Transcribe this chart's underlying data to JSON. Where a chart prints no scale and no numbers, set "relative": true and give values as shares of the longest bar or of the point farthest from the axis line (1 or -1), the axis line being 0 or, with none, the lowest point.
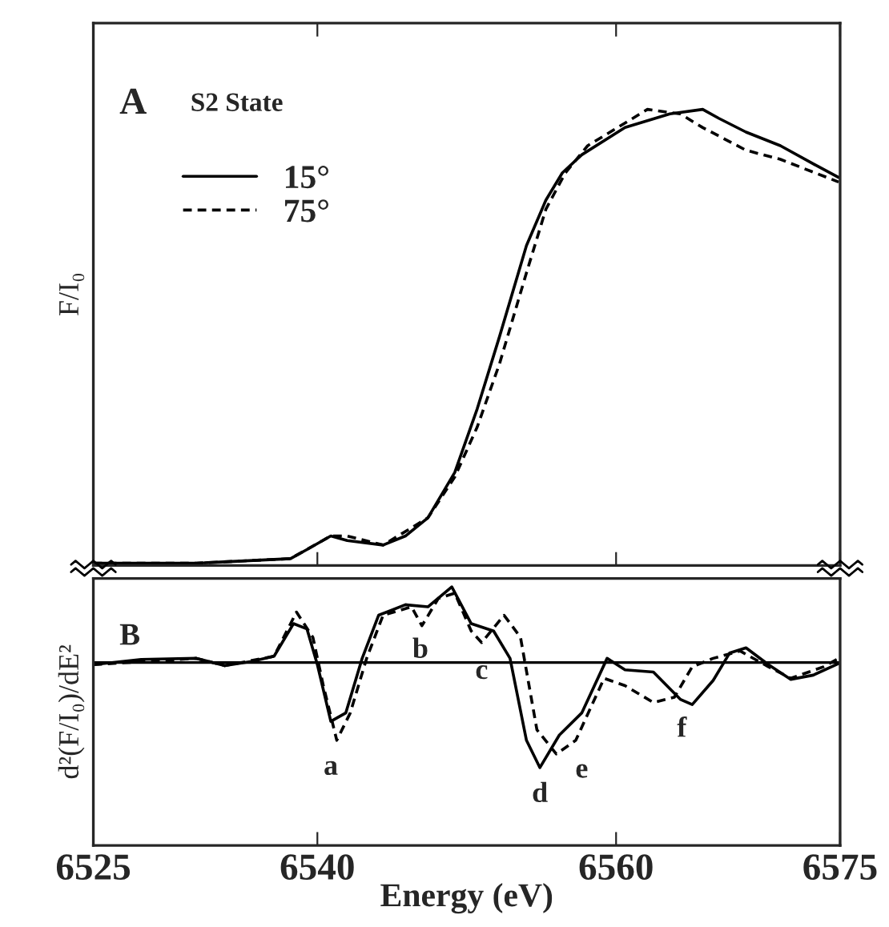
{
  "chart_data": [
    {
      "type": "line",
      "relative": true,
      "ylabel": "F/I₀",
      "annotations": [
        "A",
        "S2 State"
      ],
      "xlim": [
        6525,
        6575
      ],
      "xticks": [
        6525,
        6540,
        6560,
        6575
      ],
      "tick_labels": false,
      "legend": "left",
      "grid": false,
      "series": [
        {
          "name": "15°",
          "color": "#000000",
          "line_style": "solid",
          "x": [
            6525,
            6531.9,
            6538.2,
            6539.3,
            6540.9,
            6542.0,
            6544.4,
            6545.9,
            6547.4,
            6549.2,
            6550.7,
            6552.2,
            6554.0,
            6555.3,
            6556.4,
            6557.7,
            6560.6,
            6563.6,
            6565.8,
            6566.9,
            6568.7,
            6571.0,
            6573.2,
            6574.9
          ],
          "values": [
            0.0,
            0.0,
            0.01,
            0.03,
            0.06,
            0.05,
            0.04,
            0.06,
            0.1,
            0.2,
            0.34,
            0.5,
            0.7,
            0.8,
            0.86,
            0.9,
            0.96,
            0.99,
            1.0,
            0.98,
            0.95,
            0.92,
            0.88,
            0.85
          ]
        },
        {
          "name": "75°",
          "color": "#000000",
          "line_style": "dashed",
          "x": [
            6525,
            6531.9,
            6538.2,
            6540.9,
            6542.0,
            6544.4,
            6547.4,
            6549.2,
            6550.7,
            6552.2,
            6554.0,
            6555.3,
            6556.6,
            6558.1,
            6562.1,
            6564.3,
            6565.8,
            6568.7,
            6571.0,
            6574.9
          ],
          "values": [
            0.0,
            0.0,
            0.01,
            0.06,
            0.06,
            0.04,
            0.1,
            0.19,
            0.3,
            0.44,
            0.64,
            0.78,
            0.86,
            0.92,
            1.0,
            0.99,
            0.96,
            0.91,
            0.89,
            0.84
          ]
        }
      ]
    },
    {
      "type": "line",
      "relative": true,
      "ylabel": "d²(F/I₀)/dE²",
      "xlabel": "Energy (eV)",
      "xlim": [
        6525,
        6575
      ],
      "xticks": [
        6525,
        6540,
        6560,
        6575
      ],
      "tick_labels": "x",
      "grid": false,
      "ref_lines": [
        {
          "axis": "y",
          "value": 0
        }
      ],
      "annotations": [
        "B",
        "a",
        "b",
        "c",
        "d",
        "e",
        "f"
      ],
      "series": [
        {
          "color": "#000000",
          "line_style": "solid",
          "x": [
            6525,
            6528.2,
            6531.9,
            6533.8,
            6535.6,
            6537.1,
            6538.4,
            6539.3,
            6540.0,
            6540.9,
            6541.9,
            6543.0,
            6544.1,
            6545.9,
            6547.4,
            6549.0,
            6550.3,
            6551.8,
            6552.9,
            6554.0,
            6554.9,
            6556.2,
            6557.7,
            6559.4,
            6560.6,
            6562.5,
            6564.3,
            6565.1,
            6566.5,
            6567.6,
            6568.7,
            6570.2,
            6571.7,
            6573.2,
            6574.9
          ],
          "values": [
            -0.02,
            0.03,
            0.04,
            -0.03,
            0.01,
            0.06,
            0.37,
            0.32,
            -0.02,
            -0.56,
            -0.48,
            0.04,
            0.45,
            0.55,
            0.53,
            0.72,
            0.37,
            0.3,
            0.04,
            -0.74,
            -1.0,
            -0.69,
            -0.48,
            0.04,
            -0.07,
            -0.09,
            -0.35,
            -0.4,
            -0.17,
            0.09,
            0.14,
            -0.02,
            -0.16,
            -0.12,
            -0.01
          ]
        },
        {
          "color": "#000000",
          "line_style": "dashed",
          "x": [
            6525,
            6531.9,
            6533.8,
            6537.1,
            6538.6,
            6539.7,
            6540.4,
            6541.3,
            6542.2,
            6543.3,
            6544.4,
            6546.3,
            6547.0,
            6548.1,
            6549.2,
            6550.3,
            6551.0,
            6552.5,
            6553.6,
            6554.7,
            6556.0,
            6557.3,
            6559.2,
            6560.6,
            6562.5,
            6563.9,
            6565.1,
            6566.5,
            6568.3,
            6570.2,
            6571.7,
            6573.9,
            6574.9
          ],
          "values": [
            -0.02,
            0.04,
            -0.03,
            0.06,
            0.48,
            0.24,
            -0.22,
            -0.74,
            -0.48,
            0.04,
            0.45,
            0.53,
            0.35,
            0.61,
            0.66,
            0.3,
            0.19,
            0.45,
            0.24,
            -0.64,
            -0.87,
            -0.74,
            -0.15,
            -0.22,
            -0.38,
            -0.33,
            -0.04,
            0.04,
            0.11,
            -0.04,
            -0.15,
            -0.04,
            0.04
          ]
        }
      ]
    }
  ]
}
